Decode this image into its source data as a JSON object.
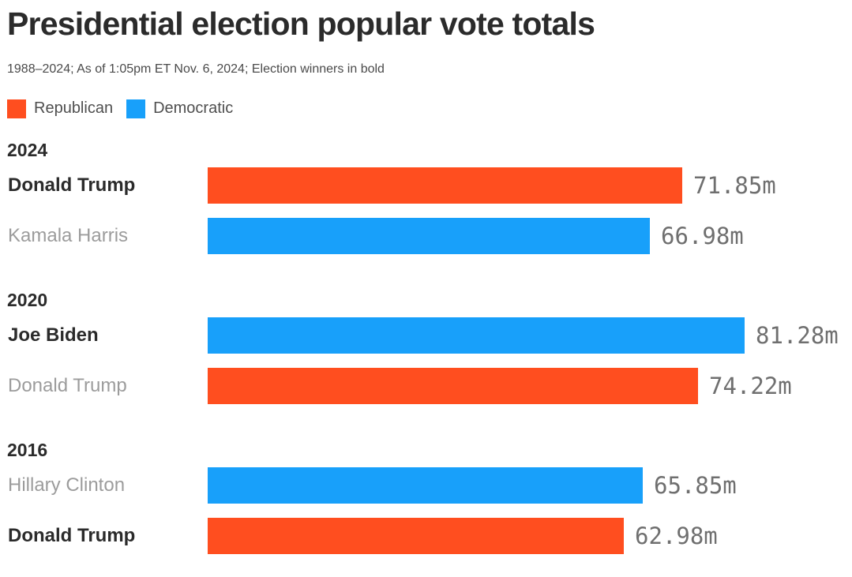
{
  "header": {
    "title": "Presidential election popular vote totals",
    "subtitle": "1988–2024; As of 1:05pm ET Nov. 6, 2024; Election winners in bold"
  },
  "legend": [
    {
      "label": "Republican",
      "color": "#FF4E1F"
    },
    {
      "label": "Democratic",
      "color": "#18A0FA"
    }
  ],
  "colors": {
    "republican": "#FF4E1F",
    "democratic": "#18A0FA",
    "winner_text": "#2b2b2b",
    "loser_text": "#9c9c9c",
    "value_text": "#6f6f6f"
  },
  "chart_data": {
    "type": "bar",
    "orientation": "horizontal",
    "title": "Presidential election popular vote totals",
    "subtitle": "1988–2024; As of 1:05pm ET Nov. 6, 2024; Election winners in bold",
    "unit": "millions of votes",
    "value_axis_min": 0,
    "value_axis_max": 81.28,
    "grid": false,
    "legend_position": "top",
    "groups": [
      {
        "year": "2024",
        "bars": [
          {
            "candidate": "Donald Trump",
            "party": "republican",
            "value": 71.85,
            "label": "71.85m",
            "winner": true
          },
          {
            "candidate": "Kamala Harris",
            "party": "democratic",
            "value": 66.98,
            "label": "66.98m",
            "winner": false
          }
        ]
      },
      {
        "year": "2020",
        "bars": [
          {
            "candidate": "Joe Biden",
            "party": "democratic",
            "value": 81.28,
            "label": "81.28m",
            "winner": true
          },
          {
            "candidate": "Donald Trump",
            "party": "republican",
            "value": 74.22,
            "label": "74.22m",
            "winner": false
          }
        ]
      },
      {
        "year": "2016",
        "bars": [
          {
            "candidate": "Hillary Clinton",
            "party": "democratic",
            "value": 65.85,
            "label": "65.85m",
            "winner": false
          },
          {
            "candidate": "Donald Trump",
            "party": "republican",
            "value": 62.98,
            "label": "62.98m",
            "winner": true
          }
        ]
      }
    ]
  }
}
